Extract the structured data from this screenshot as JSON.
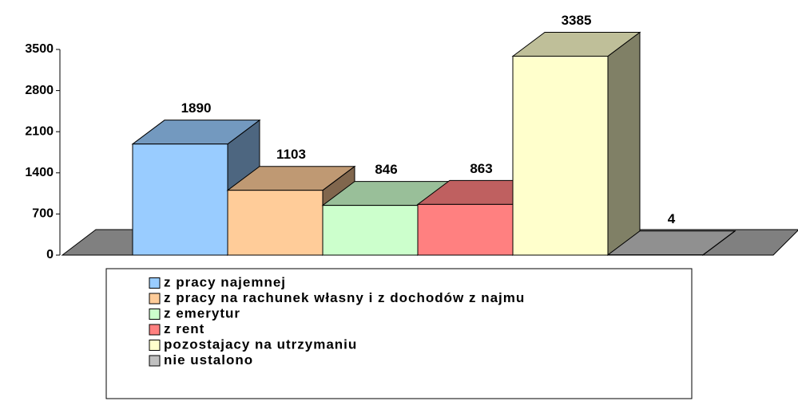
{
  "chart_data": {
    "type": "bar",
    "series": [
      {
        "name": "z pracy najemnej",
        "color": "#99ccff",
        "values": [
          1890
        ]
      },
      {
        "name": "z pracy na rachunek własny i z dochodów z najmu",
        "color": "#ffcc99",
        "values": [
          1103
        ]
      },
      {
        "name": "z emerytur",
        "color": "#ccffcc",
        "values": [
          846
        ]
      },
      {
        "name": "z rent",
        "color": "#ff8080",
        "values": [
          863
        ]
      },
      {
        "name": "pozostajacy na utrzymaniu",
        "color": "#ffffcc",
        "values": [
          3385
        ]
      },
      {
        "name": "nie ustalono",
        "color": "#c0c0c0",
        "values": [
          4
        ]
      }
    ],
    "ylim": [
      0,
      3500
    ],
    "yticks": [
      0,
      700,
      1400,
      2100,
      2800,
      3500
    ]
  }
}
